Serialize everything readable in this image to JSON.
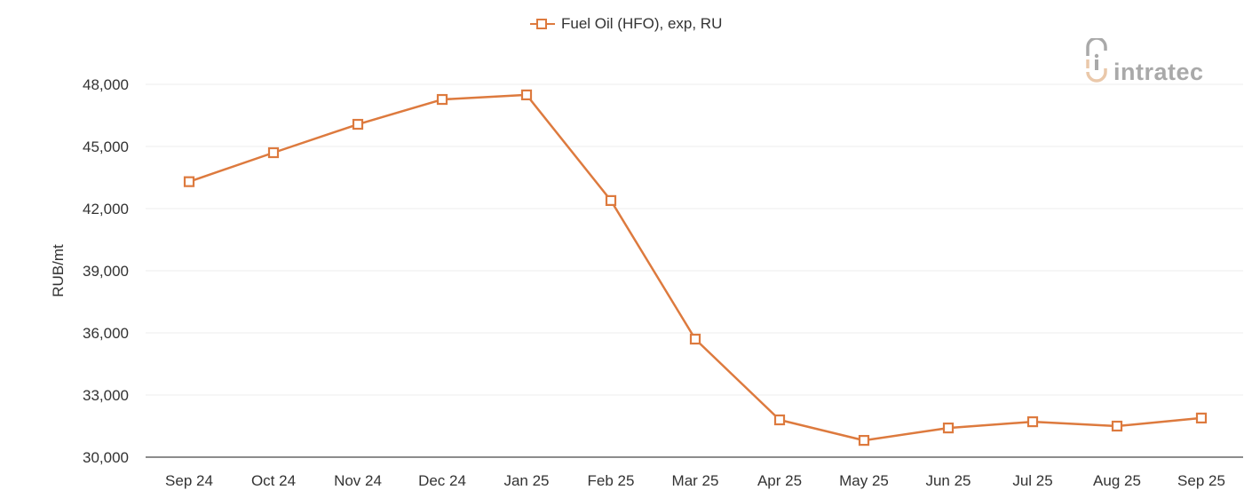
{
  "legend": {
    "label": "Fuel Oil (HFO), exp, RU",
    "marker": "hollow-square-line"
  },
  "logo": {
    "text": "intratec"
  },
  "colors": {
    "series": "#dd7a3e",
    "grid": "#eeeeee",
    "axis": "#666666",
    "text": "#333333",
    "logo_gray": "#a9a9a9",
    "logo_accent": "#eac8aa"
  },
  "chart_data": {
    "type": "line",
    "title": "",
    "xlabel": "",
    "ylabel": "RUB/mt",
    "categories": [
      "Sep 24",
      "Oct 24",
      "Nov 24",
      "Dec 24",
      "Jan 25",
      "Feb 25",
      "Mar 25",
      "Apr 25",
      "May 25",
      "Jun 25",
      "Jul 25",
      "Aug 25",
      "Sep 25"
    ],
    "series": [
      {
        "name": "Fuel Oil (HFO), exp, RU",
        "values": [
          43300,
          44700,
          46070,
          47270,
          47490,
          42390,
          35700,
          31800,
          30810,
          31410,
          31710,
          31500,
          31890
        ]
      }
    ],
    "ylim": [
      30000,
      48000
    ],
    "yticks": [
      30000,
      33000,
      36000,
      39000,
      42000,
      45000,
      48000
    ],
    "ytick_labels": [
      "30,000",
      "33,000",
      "36,000",
      "39,000",
      "42,000",
      "45,000",
      "48,000"
    ],
    "grid": true,
    "legend_position": "top-center"
  }
}
